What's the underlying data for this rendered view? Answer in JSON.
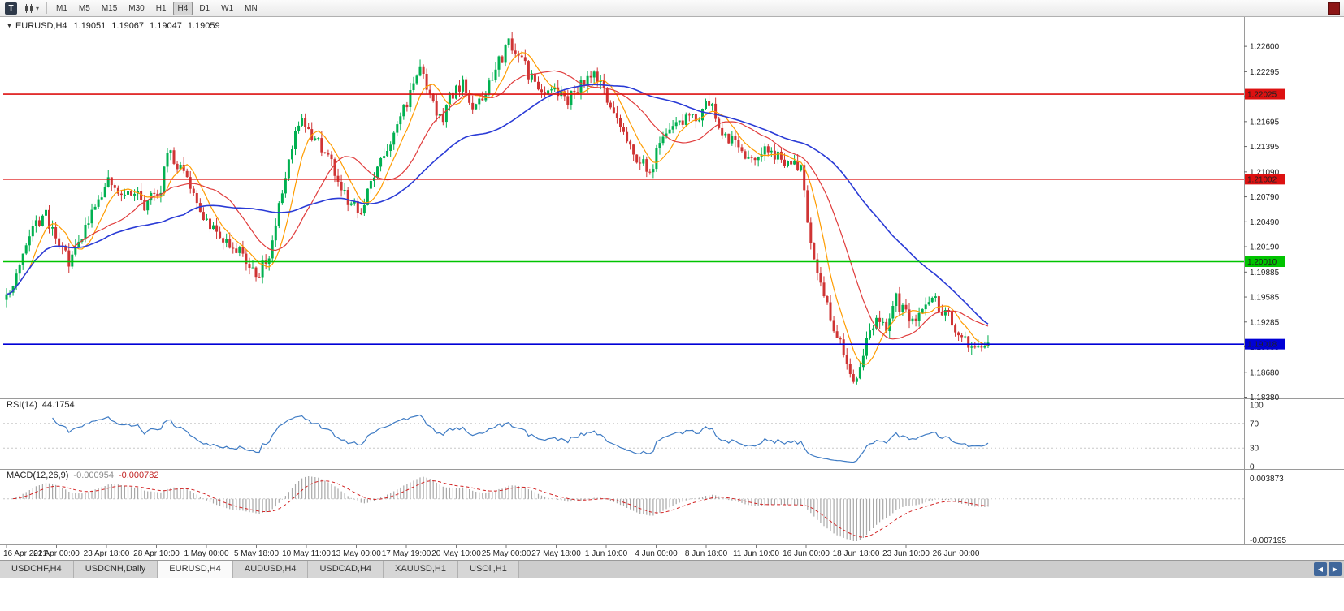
{
  "toolbar": {
    "tool_button": "T",
    "timeframes": [
      "M1",
      "M5",
      "M15",
      "M30",
      "H1",
      "H4",
      "D1",
      "W1",
      "MN"
    ],
    "active_timeframe": "H4"
  },
  "chart": {
    "header": {
      "symbol": "EURUSD,H4",
      "open": "1.19051",
      "high": "1.19067",
      "low": "1.19047",
      "close": "1.19059"
    }
  },
  "indicators": {
    "rsi": {
      "label": "RSI(14)",
      "value": "44.1754",
      "levels": [
        "100",
        "70",
        "30",
        "0"
      ]
    },
    "macd": {
      "label": "MACD(12,26,9)",
      "value_main": "-0.000954",
      "value_signal": "-0.000782",
      "scale_max": "0.003873",
      "scale_min": "-0.007195"
    }
  },
  "tabs": {
    "items": [
      "USDCHF,H4",
      "USDCNH,Daily",
      "EURUSD,H4",
      "AUDUSD,H4",
      "USDCAD,H4",
      "XAUUSD,H1",
      "USOil,H1"
    ],
    "active": "EURUSD,H4"
  },
  "chart_data": {
    "type": "candlestick",
    "symbol": "EURUSD",
    "timeframe": "H4",
    "bars": 300,
    "price_axis_range": [
      1.18385,
      1.22855
    ],
    "price_axis_labels": [
      "1.22600",
      "1.22295",
      "1.21995",
      "1.21695",
      "1.21395",
      "1.21090",
      "1.20790",
      "1.20490",
      "1.20190",
      "1.19885",
      "1.19585",
      "1.19285",
      "1.18985",
      "1.18680",
      "1.18380"
    ],
    "time_axis_labels": [
      "16 Apr 2021",
      "21 Apr 00:00",
      "23 Apr 18:00",
      "28 Apr 10:00",
      "1 May 00:00",
      "5 May 18:00",
      "10 May 11:00",
      "13 May 00:00",
      "17 May 19:00",
      "20 May 10:00",
      "25 May 00:00",
      "27 May 18:00",
      "1 Jun 10:00",
      "4 Jun 00:00",
      "8 Jun 18:00",
      "11 Jun 10:00",
      "16 Jun 00:00",
      "18 Jun 18:00",
      "23 Jun 10:00",
      "26 Jun 00:00"
    ],
    "horizontal_lines": [
      {
        "name": "resistance-line-1",
        "price": 1.22025,
        "label": "1.22025",
        "color": "#dd1111"
      },
      {
        "name": "resistance-line-2",
        "price": 1.21002,
        "label": "1.21002",
        "color": "#dd1111"
      },
      {
        "name": "support-line-green",
        "price": 1.2001,
        "label": "1.20010",
        "color": "#00c400"
      },
      {
        "name": "support-line-blue",
        "price": 1.19018,
        "label": "1.19018",
        "color": "#0000d6"
      }
    ],
    "close_path": [
      [
        0,
        1.196
      ],
      [
        3,
        1.1985
      ],
      [
        8,
        1.204
      ],
      [
        12,
        1.2058
      ],
      [
        15,
        1.2025
      ],
      [
        19,
        1.2002
      ],
      [
        23,
        1.203
      ],
      [
        28,
        1.2075
      ],
      [
        31,
        1.2105
      ],
      [
        35,
        1.2082
      ],
      [
        39,
        1.2088
      ],
      [
        42,
        1.207
      ],
      [
        47,
        1.209
      ],
      [
        49,
        1.2138
      ],
      [
        51,
        1.2124
      ],
      [
        54,
        1.2108
      ],
      [
        57,
        1.208
      ],
      [
        61,
        1.2048
      ],
      [
        66,
        1.2028
      ],
      [
        71,
        1.2015
      ],
      [
        75,
        1.1992
      ],
      [
        77,
        1.1988
      ],
      [
        80,
        1.201
      ],
      [
        83,
        1.2065
      ],
      [
        87,
        1.214
      ],
      [
        90,
        1.217
      ],
      [
        93,
        1.2155
      ],
      [
        97,
        1.213
      ],
      [
        100,
        1.211
      ],
      [
        104,
        1.2072
      ],
      [
        108,
        1.2065
      ],
      [
        112,
        1.21
      ],
      [
        115,
        1.213
      ],
      [
        119,
        1.216
      ],
      [
        123,
        1.2205
      ],
      [
        126,
        1.223
      ],
      [
        130,
        1.219
      ],
      [
        133,
        1.217
      ],
      [
        135,
        1.22
      ],
      [
        139,
        1.2215
      ],
      [
        142,
        1.218
      ],
      [
        146,
        1.2205
      ],
      [
        150,
        1.224
      ],
      [
        153,
        1.2262
      ],
      [
        156,
        1.225
      ],
      [
        160,
        1.222
      ],
      [
        163,
        1.22
      ],
      [
        167,
        1.221
      ],
      [
        171,
        1.2195
      ],
      [
        175,
        1.2215
      ],
      [
        178,
        1.2225
      ],
      [
        181,
        1.2215
      ],
      [
        184,
        1.219
      ],
      [
        188,
        1.215
      ],
      [
        192,
        1.2125
      ],
      [
        196,
        1.2108
      ],
      [
        199,
        1.2145
      ],
      [
        203,
        1.216
      ],
      [
        207,
        1.217
      ],
      [
        211,
        1.2172
      ],
      [
        214,
        1.2195
      ],
      [
        217,
        1.2165
      ],
      [
        220,
        1.215
      ],
      [
        224,
        1.213
      ],
      [
        228,
        1.212
      ],
      [
        231,
        1.2135
      ],
      [
        235,
        1.2128
      ],
      [
        239,
        1.212
      ],
      [
        242,
        1.2115
      ],
      [
        244,
        1.2045
      ],
      [
        246,
        1.1998
      ],
      [
        249,
        1.196
      ],
      [
        251,
        1.193
      ],
      [
        254,
        1.1903
      ],
      [
        256,
        1.1875
      ],
      [
        258,
        1.1855
      ],
      [
        260,
        1.188
      ],
      [
        262,
        1.191
      ],
      [
        265,
        1.1932
      ],
      [
        268,
        1.192
      ],
      [
        271,
        1.1955
      ],
      [
        273,
        1.1942
      ],
      [
        276,
        1.193
      ],
      [
        280,
        1.1955
      ],
      [
        282,
        1.1963
      ],
      [
        285,
        1.194
      ],
      [
        288,
        1.193
      ],
      [
        291,
        1.1912
      ],
      [
        293,
        1.1896
      ],
      [
        296,
        1.19
      ],
      [
        299,
        1.19059
      ]
    ],
    "indicators": {
      "rsi_period": 14,
      "macd": [
        12,
        26,
        9
      ]
    },
    "moving_averages": [
      {
        "period": 8,
        "color": "#ff9c00",
        "width": 1.2
      },
      {
        "period": 21,
        "color": "#e03c3c",
        "width": 1.2
      },
      {
        "period": 55,
        "color": "#2a3bd6",
        "width": 1.6
      }
    ],
    "colors": {
      "up": "#00b050",
      "down": "#cf3434",
      "rsi": "#3e7bc4",
      "macd_histogram": "#a8a8a8",
      "macd_signal": "#d22222"
    }
  }
}
